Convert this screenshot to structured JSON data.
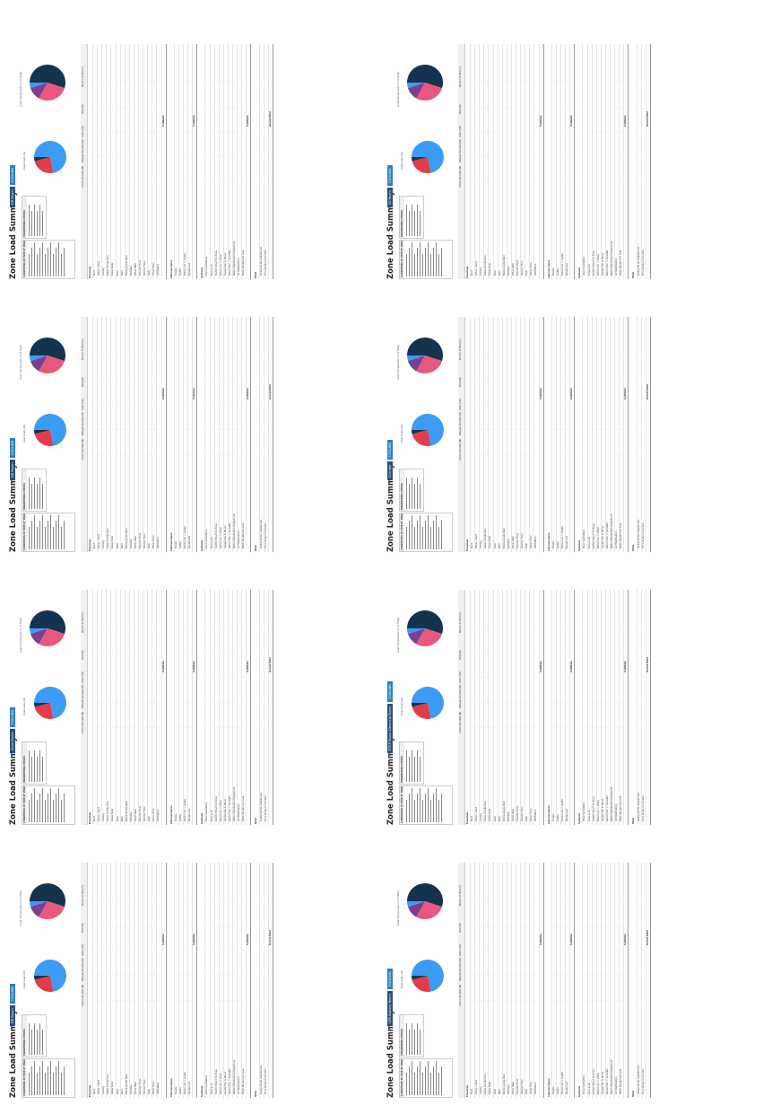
{
  "title": "Zone Load Summary",
  "zone_tabs": [
    [
      "DR Room",
      "COOLING"
    ],
    [
      "Zone Room",
      "COOLING"
    ],
    [
      "DR Room",
      "COOLING"
    ],
    [
      "DR Room",
      "COOLING"
    ],
    [
      "UPS Battery Room",
      "COOLING"
    ],
    [
      "ETCP Room Electrical Room",
      "COOLING"
    ],
    [
      "Corridor",
      "COOLING"
    ],
    [
      "SS Room",
      "COOLING"
    ]
  ],
  "condition_header": "CONDITIONS AT TIME OF PEAK",
  "engineering_header": "ENGINEERING CHECKS",
  "pie_left_caption": "Peak Loads (W)",
  "pie_right_caption": "Load Components (% of Total)",
  "columns": [
    "Instant Sensible (W)",
    "Delayed Sensible (W)",
    "Latent (W)",
    "Total (W)",
    "Percent of Total (%)"
  ],
  "sections": [
    {
      "name": "Envelope",
      "items": [
        "Roof",
        "Other r Roof",
        "Ceiling",
        "Glass Conduction",
        "Glass Solar",
        "Door",
        "Wall",
        "Below grade Wall",
        "Partition",
        "Other Wall",
        "Exterior Floor",
        "Interior Floor",
        "Slab",
        "Other Floor",
        "Infiltration"
      ]
    },
    {
      "name": "Internal Gains",
      "items": [
        "People",
        "Lights",
        "Fixture Ari = Lights",
        "Equipment"
      ]
    },
    {
      "name": "Systems",
      "items": [
        "Zone Ventilation",
        "Fans & Air",
        "OA/OC Direct to Zone",
        "Return Air = Other",
        "Supply Fan & Hover",
        "Return Fan = Sensible",
        "Water Distribution Equipment",
        "Air Distribution",
        "HVAC Equipment Loss"
      ]
    },
    {
      "name": "Total",
      "items": [
        "Sizing Factor Adjustment",
        "Time Delay Correction"
      ]
    }
  ],
  "subtotal_label": "Subtotal",
  "grand_total_label": "Grand Total",
  "colors": {
    "blue": "#3b9cf5",
    "red": "#e23c4b",
    "navy": "#14334f",
    "pink": "#e8577d",
    "purple": "#7a3f8f",
    "tab_dark": "#2c4f74",
    "tab_light": "#2c7fc2"
  }
}
